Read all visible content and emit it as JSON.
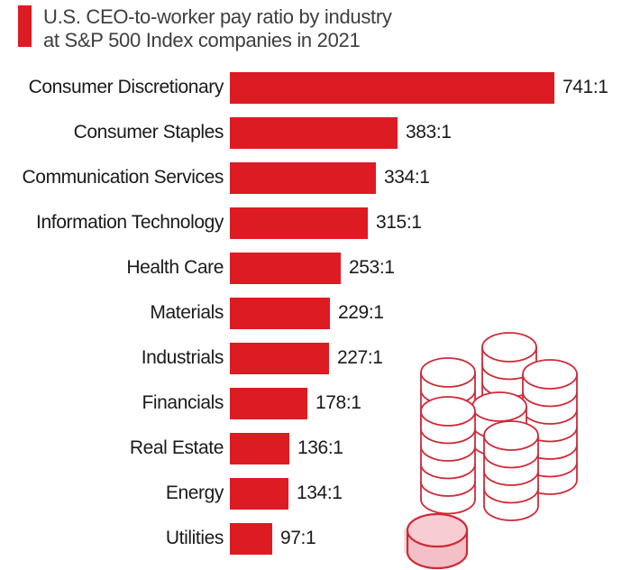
{
  "title": {
    "line1": "U.S. CEO-to-worker pay ratio by industry",
    "line2": "at S&P 500 Index companies in 2021"
  },
  "chart_data": {
    "type": "bar",
    "orientation": "horizontal",
    "title": "U.S. CEO-to-worker pay ratio by industry at S&P 500 Index companies in 2021",
    "xlabel": "",
    "ylabel": "",
    "xlim": [
      0,
      770
    ],
    "grid": false,
    "legend": false,
    "bar_color": "#dd1b22",
    "categories": [
      "Consumer Discretionary",
      "Consumer Staples",
      "Communication Services",
      "Information Technology",
      "Health Care",
      "Materials",
      "Industrials",
      "Financials",
      "Real Estate",
      "Energy",
      "Utilities"
    ],
    "values": [
      741,
      383,
      334,
      315,
      253,
      229,
      227,
      178,
      136,
      134,
      97
    ],
    "value_labels": [
      "741:1",
      "383:1",
      "334:1",
      "315:1",
      "253:1",
      "229:1",
      "227:1",
      "178:1",
      "136:1",
      "134:1",
      "97:1"
    ]
  },
  "colors": {
    "bar_red": "#dd1b22",
    "title_marker_red": "#dd1b22",
    "title_text": "#3e3e3e",
    "label_text": "#1a1a1a",
    "coin_outline": "#ce2b38",
    "coin_fill_top": "#f7cdd2",
    "coin_fill_side": "#f2c0c6",
    "coin_shadow": "#f9dadd",
    "background": "#ffffff"
  },
  "icons": {
    "coin_stacks": "coin-stacks-icon",
    "pink_coin": "pink-coin-icon"
  }
}
